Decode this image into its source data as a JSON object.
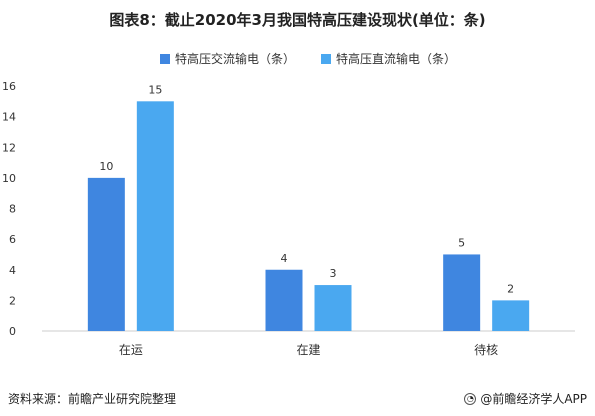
{
  "title": "图表8：截止2020年3月我国特高压建设现状(单位：条)",
  "source": "资料来源：前瞻产业研究院整理",
  "brand": "@前瞻经济学人APP",
  "brand_icon": "qianzhan-logo-icon",
  "colors": {
    "series_ac": "#3F86E0",
    "series_dc": "#4AA8F0",
    "axis": "#CCCCCC",
    "label": "#333333"
  },
  "chart_data": {
    "type": "bar",
    "title": "图表8：截止2020年3月我国特高压建设现状(单位：条)",
    "categories": [
      "在运",
      "在建",
      "待核"
    ],
    "series": [
      {
        "name": "特高压交流输电（条）",
        "values": [
          10,
          4,
          5
        ]
      },
      {
        "name": "特高压直流输电（条）",
        "values": [
          15,
          3,
          2
        ]
      }
    ],
    "yticks": [
      0,
      2,
      4,
      6,
      8,
      10,
      12,
      14,
      16
    ],
    "ylim": [
      0,
      16
    ],
    "xlabel": "",
    "ylabel": "",
    "grid": false,
    "legend_position": "top"
  }
}
